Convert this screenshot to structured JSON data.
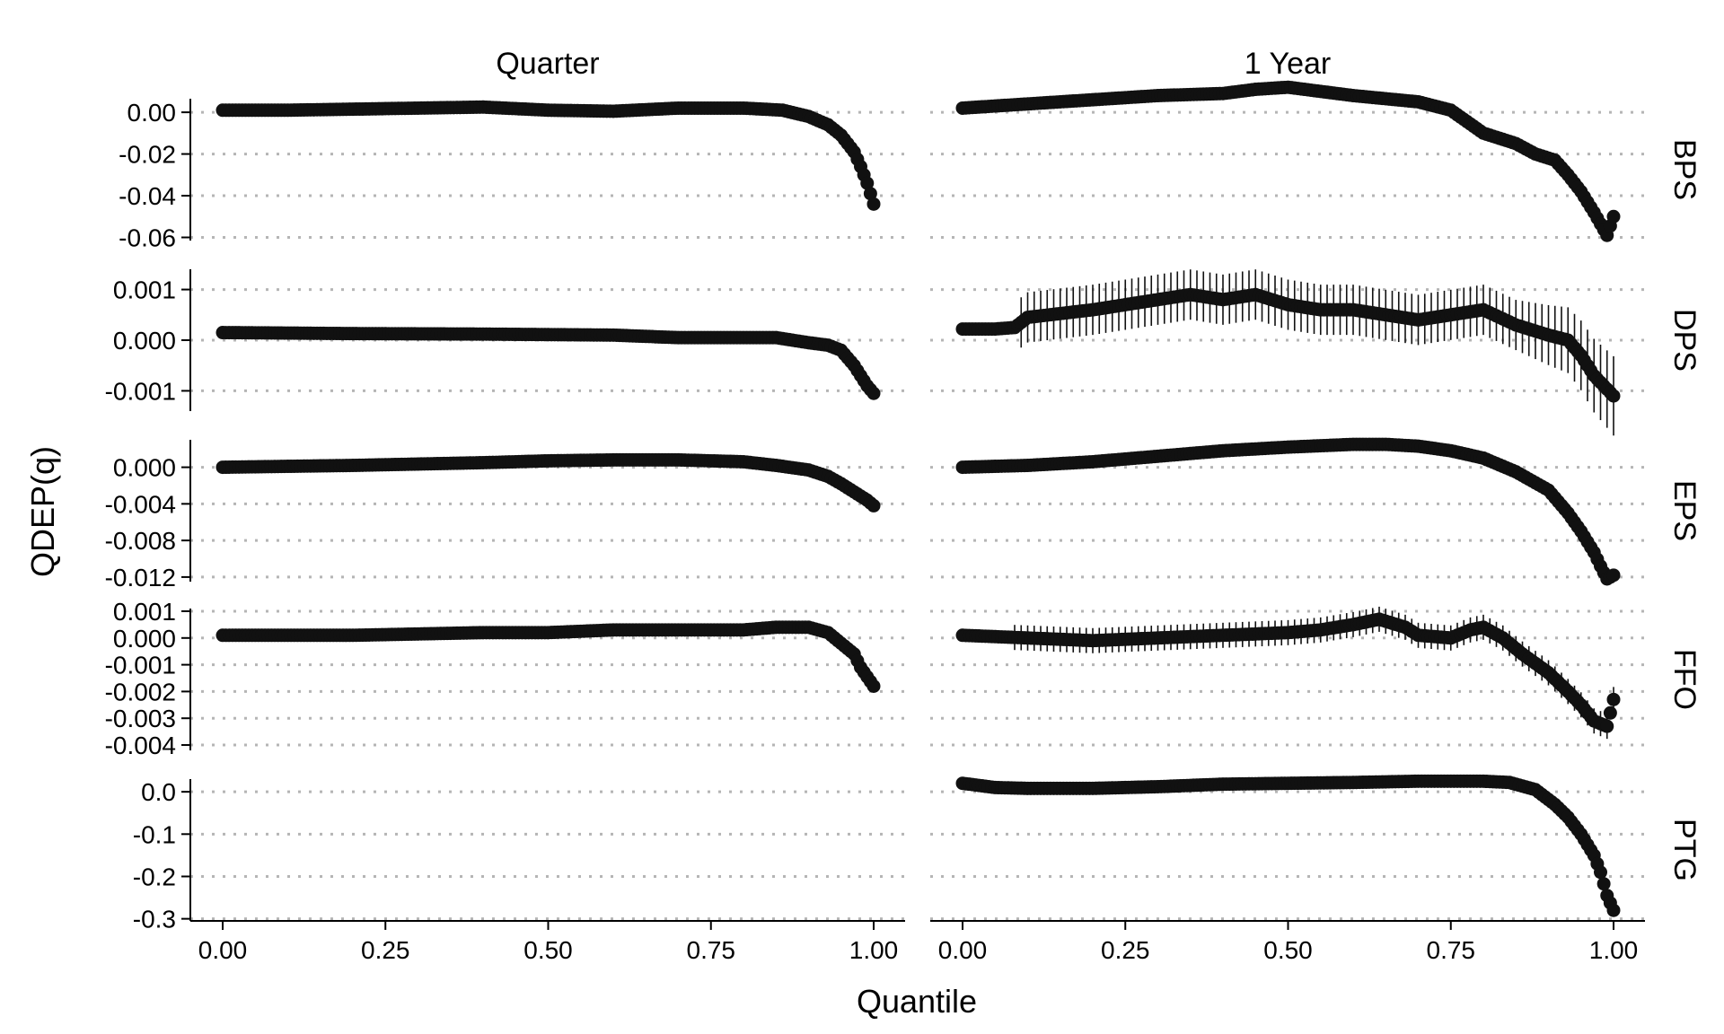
{
  "chart_data": {
    "type": "scatter",
    "xlabel": "Quantile",
    "ylabel": "QDEP(q)",
    "columns": [
      "Quarter",
      "1 Year"
    ],
    "rows": [
      "BPS",
      "DPS",
      "EPS",
      "FFO",
      "PTG"
    ],
    "xlim": [
      0,
      1
    ],
    "x_ticks": [
      "0.00",
      "0.25",
      "0.50",
      "0.75",
      "1.00"
    ],
    "x_tick_values": [
      0,
      0.25,
      0.5,
      0.75,
      1.0
    ],
    "grid": "horizontal dotted",
    "point_color": "#111111",
    "grid_color": "#b5b5b5",
    "panels": [
      {
        "row": "BPS",
        "ylim": [
          -0.0615,
          0.0065
        ],
        "y_ticks": [
          "0.00",
          "-0.02",
          "-0.04",
          "-0.06"
        ],
        "y_tick_values": [
          0,
          -0.02,
          -0.04,
          -0.06
        ],
        "series": [
          {
            "column": "Quarter",
            "points": [
              [
                0.0,
                0.001
              ],
              [
                0.1,
                0.001
              ],
              [
                0.2,
                0.0015
              ],
              [
                0.3,
                0.002
              ],
              [
                0.4,
                0.0025
              ],
              [
                0.5,
                0.001
              ],
              [
                0.6,
                0.0005
              ],
              [
                0.7,
                0.002
              ],
              [
                0.8,
                0.002
              ],
              [
                0.86,
                0.001
              ],
              [
                0.9,
                -0.002
              ],
              [
                0.93,
                -0.006
              ],
              [
                0.95,
                -0.011
              ],
              [
                0.97,
                -0.019
              ],
              [
                0.98,
                -0.026
              ],
              [
                0.99,
                -0.034
              ],
              [
                1.0,
                -0.044
              ]
            ]
          },
          {
            "column": "1 Year",
            "points": [
              [
                0.0,
                0.002
              ],
              [
                0.1,
                0.004
              ],
              [
                0.2,
                0.006
              ],
              [
                0.3,
                0.008
              ],
              [
                0.4,
                0.009
              ],
              [
                0.45,
                0.011
              ],
              [
                0.5,
                0.012
              ],
              [
                0.55,
                0.01
              ],
              [
                0.6,
                0.008
              ],
              [
                0.7,
                0.005
              ],
              [
                0.75,
                0.001
              ],
              [
                0.8,
                -0.01
              ],
              [
                0.85,
                -0.015
              ],
              [
                0.88,
                -0.02
              ],
              [
                0.91,
                -0.023
              ],
              [
                0.93,
                -0.03
              ],
              [
                0.95,
                -0.038
              ],
              [
                0.97,
                -0.048
              ],
              [
                0.99,
                -0.059
              ],
              [
                1.0,
                -0.05
              ]
            ]
          }
        ]
      },
      {
        "row": "DPS",
        "ylim": [
          -0.0014,
          0.0014
        ],
        "y_ticks": [
          "0.001",
          "0.000",
          "-0.001"
        ],
        "y_tick_values": [
          0.001,
          0,
          -0.001
        ],
        "series": [
          {
            "column": "Quarter",
            "points": [
              [
                0.0,
                0.00015
              ],
              [
                0.2,
                0.00013
              ],
              [
                0.4,
                0.00012
              ],
              [
                0.6,
                0.0001
              ],
              [
                0.7,
                5e-05
              ],
              [
                0.85,
                5e-05
              ],
              [
                0.9,
                -5e-05
              ],
              [
                0.93,
                -0.0001
              ],
              [
                0.95,
                -0.0002
              ],
              [
                0.97,
                -0.0005
              ],
              [
                0.99,
                -0.0009
              ],
              [
                1.0,
                -0.00105
              ]
            ]
          },
          {
            "column": "1 Year",
            "points": [
              [
                0.0,
                0.00022
              ],
              [
                0.05,
                0.00022
              ],
              [
                0.08,
                0.00025
              ],
              [
                0.1,
                0.00045
              ],
              [
                0.2,
                0.0006
              ],
              [
                0.3,
                0.0008
              ],
              [
                0.35,
                0.0009
              ],
              [
                0.4,
                0.0008
              ],
              [
                0.45,
                0.0009
              ],
              [
                0.5,
                0.0007
              ],
              [
                0.55,
                0.0006
              ],
              [
                0.6,
                0.0006
              ],
              [
                0.7,
                0.0004
              ],
              [
                0.75,
                0.0005
              ],
              [
                0.8,
                0.0006
              ],
              [
                0.85,
                0.0003
              ],
              [
                0.9,
                0.0001
              ],
              [
                0.93,
                0.0
              ],
              [
                0.95,
                -0.0003
              ],
              [
                0.97,
                -0.0007
              ],
              [
                1.0,
                -0.0011
              ]
            ]
          }
        ]
      },
      {
        "row": "EPS",
        "ylim": [
          -0.0125,
          0.003
        ],
        "y_ticks": [
          "0.000",
          "-0.004",
          "-0.008",
          "-0.012"
        ],
        "y_tick_values": [
          0,
          -0.004,
          -0.008,
          -0.012
        ],
        "series": [
          {
            "column": "Quarter",
            "points": [
              [
                0.0,
                0.0
              ],
              [
                0.2,
                0.0002
              ],
              [
                0.4,
                0.0005
              ],
              [
                0.5,
                0.0007
              ],
              [
                0.6,
                0.0008
              ],
              [
                0.7,
                0.0008
              ],
              [
                0.8,
                0.0006
              ],
              [
                0.85,
                0.0002
              ],
              [
                0.9,
                -0.0003
              ],
              [
                0.93,
                -0.001
              ],
              [
                0.95,
                -0.0018
              ],
              [
                0.97,
                -0.0027
              ],
              [
                0.99,
                -0.0036
              ],
              [
                1.0,
                -0.0042
              ]
            ]
          },
          {
            "column": "1 Year",
            "points": [
              [
                0.0,
                0.0
              ],
              [
                0.1,
                0.0002
              ],
              [
                0.2,
                0.0006
              ],
              [
                0.3,
                0.0012
              ],
              [
                0.4,
                0.0018
              ],
              [
                0.5,
                0.0022
              ],
              [
                0.6,
                0.0025
              ],
              [
                0.65,
                0.0025
              ],
              [
                0.7,
                0.0023
              ],
              [
                0.75,
                0.0018
              ],
              [
                0.8,
                0.001
              ],
              [
                0.85,
                -0.0005
              ],
              [
                0.9,
                -0.0025
              ],
              [
                0.93,
                -0.005
              ],
              [
                0.95,
                -0.007
              ],
              [
                0.97,
                -0.0093
              ],
              [
                0.98,
                -0.0108
              ],
              [
                0.99,
                -0.0122
              ],
              [
                1.0,
                -0.0118
              ]
            ]
          }
        ]
      },
      {
        "row": "FFO",
        "ylim": [
          -0.0042,
          0.0011
        ],
        "y_ticks": [
          "0.001",
          "0.000",
          "-0.001",
          "-0.002",
          "-0.003",
          "-0.004"
        ],
        "y_tick_values": [
          0.001,
          0,
          -0.001,
          -0.002,
          -0.003,
          -0.004
        ],
        "series": [
          {
            "column": "Quarter",
            "points": [
              [
                0.0,
                0.0001
              ],
              [
                0.2,
                0.0001
              ],
              [
                0.4,
                0.0002
              ],
              [
                0.5,
                0.0002
              ],
              [
                0.6,
                0.0003
              ],
              [
                0.7,
                0.0003
              ],
              [
                0.8,
                0.0003
              ],
              [
                0.85,
                0.0004
              ],
              [
                0.9,
                0.0004
              ],
              [
                0.93,
                0.0002
              ],
              [
                0.95,
                -0.0002
              ],
              [
                0.97,
                -0.0006
              ],
              [
                0.98,
                -0.0011
              ],
              [
                1.0,
                -0.0018
              ]
            ]
          },
          {
            "column": "1 Year",
            "points": [
              [
                0.0,
                0.0001
              ],
              [
                0.1,
                0.0
              ],
              [
                0.2,
                -0.0001
              ],
              [
                0.3,
                0.0
              ],
              [
                0.4,
                0.0001
              ],
              [
                0.5,
                0.0002
              ],
              [
                0.55,
                0.0003
              ],
              [
                0.6,
                0.0005
              ],
              [
                0.64,
                0.0007
              ],
              [
                0.68,
                0.0004
              ],
              [
                0.7,
                0.0001
              ],
              [
                0.75,
                0.0
              ],
              [
                0.78,
                0.0003
              ],
              [
                0.8,
                0.0004
              ],
              [
                0.83,
                0.0
              ],
              [
                0.86,
                -0.0006
              ],
              [
                0.9,
                -0.0013
              ],
              [
                0.93,
                -0.002
              ],
              [
                0.95,
                -0.0025
              ],
              [
                0.97,
                -0.0031
              ],
              [
                0.99,
                -0.0033
              ],
              [
                1.0,
                -0.0023
              ]
            ]
          }
        ]
      },
      {
        "row": "PTG",
        "ylim": [
          -0.305,
          0.03
        ],
        "y_ticks": [
          "0.0",
          "-0.1",
          "-0.2",
          "-0.3"
        ],
        "y_tick_values": [
          0,
          -0.1,
          -0.2,
          -0.3
        ],
        "series": [
          {
            "column": "1 Year",
            "points": [
              [
                0.0,
                0.02
              ],
              [
                0.05,
                0.01
              ],
              [
                0.1,
                0.008
              ],
              [
                0.2,
                0.008
              ],
              [
                0.3,
                0.012
              ],
              [
                0.4,
                0.018
              ],
              [
                0.5,
                0.02
              ],
              [
                0.6,
                0.022
              ],
              [
                0.7,
                0.025
              ],
              [
                0.8,
                0.025
              ],
              [
                0.84,
                0.022
              ],
              [
                0.88,
                0.005
              ],
              [
                0.91,
                -0.03
              ],
              [
                0.93,
                -0.06
              ],
              [
                0.95,
                -0.1
              ],
              [
                0.97,
                -0.15
              ],
              [
                0.98,
                -0.19
              ],
              [
                0.99,
                -0.245
              ],
              [
                1.0,
                -0.28
              ]
            ]
          }
        ]
      }
    ]
  }
}
